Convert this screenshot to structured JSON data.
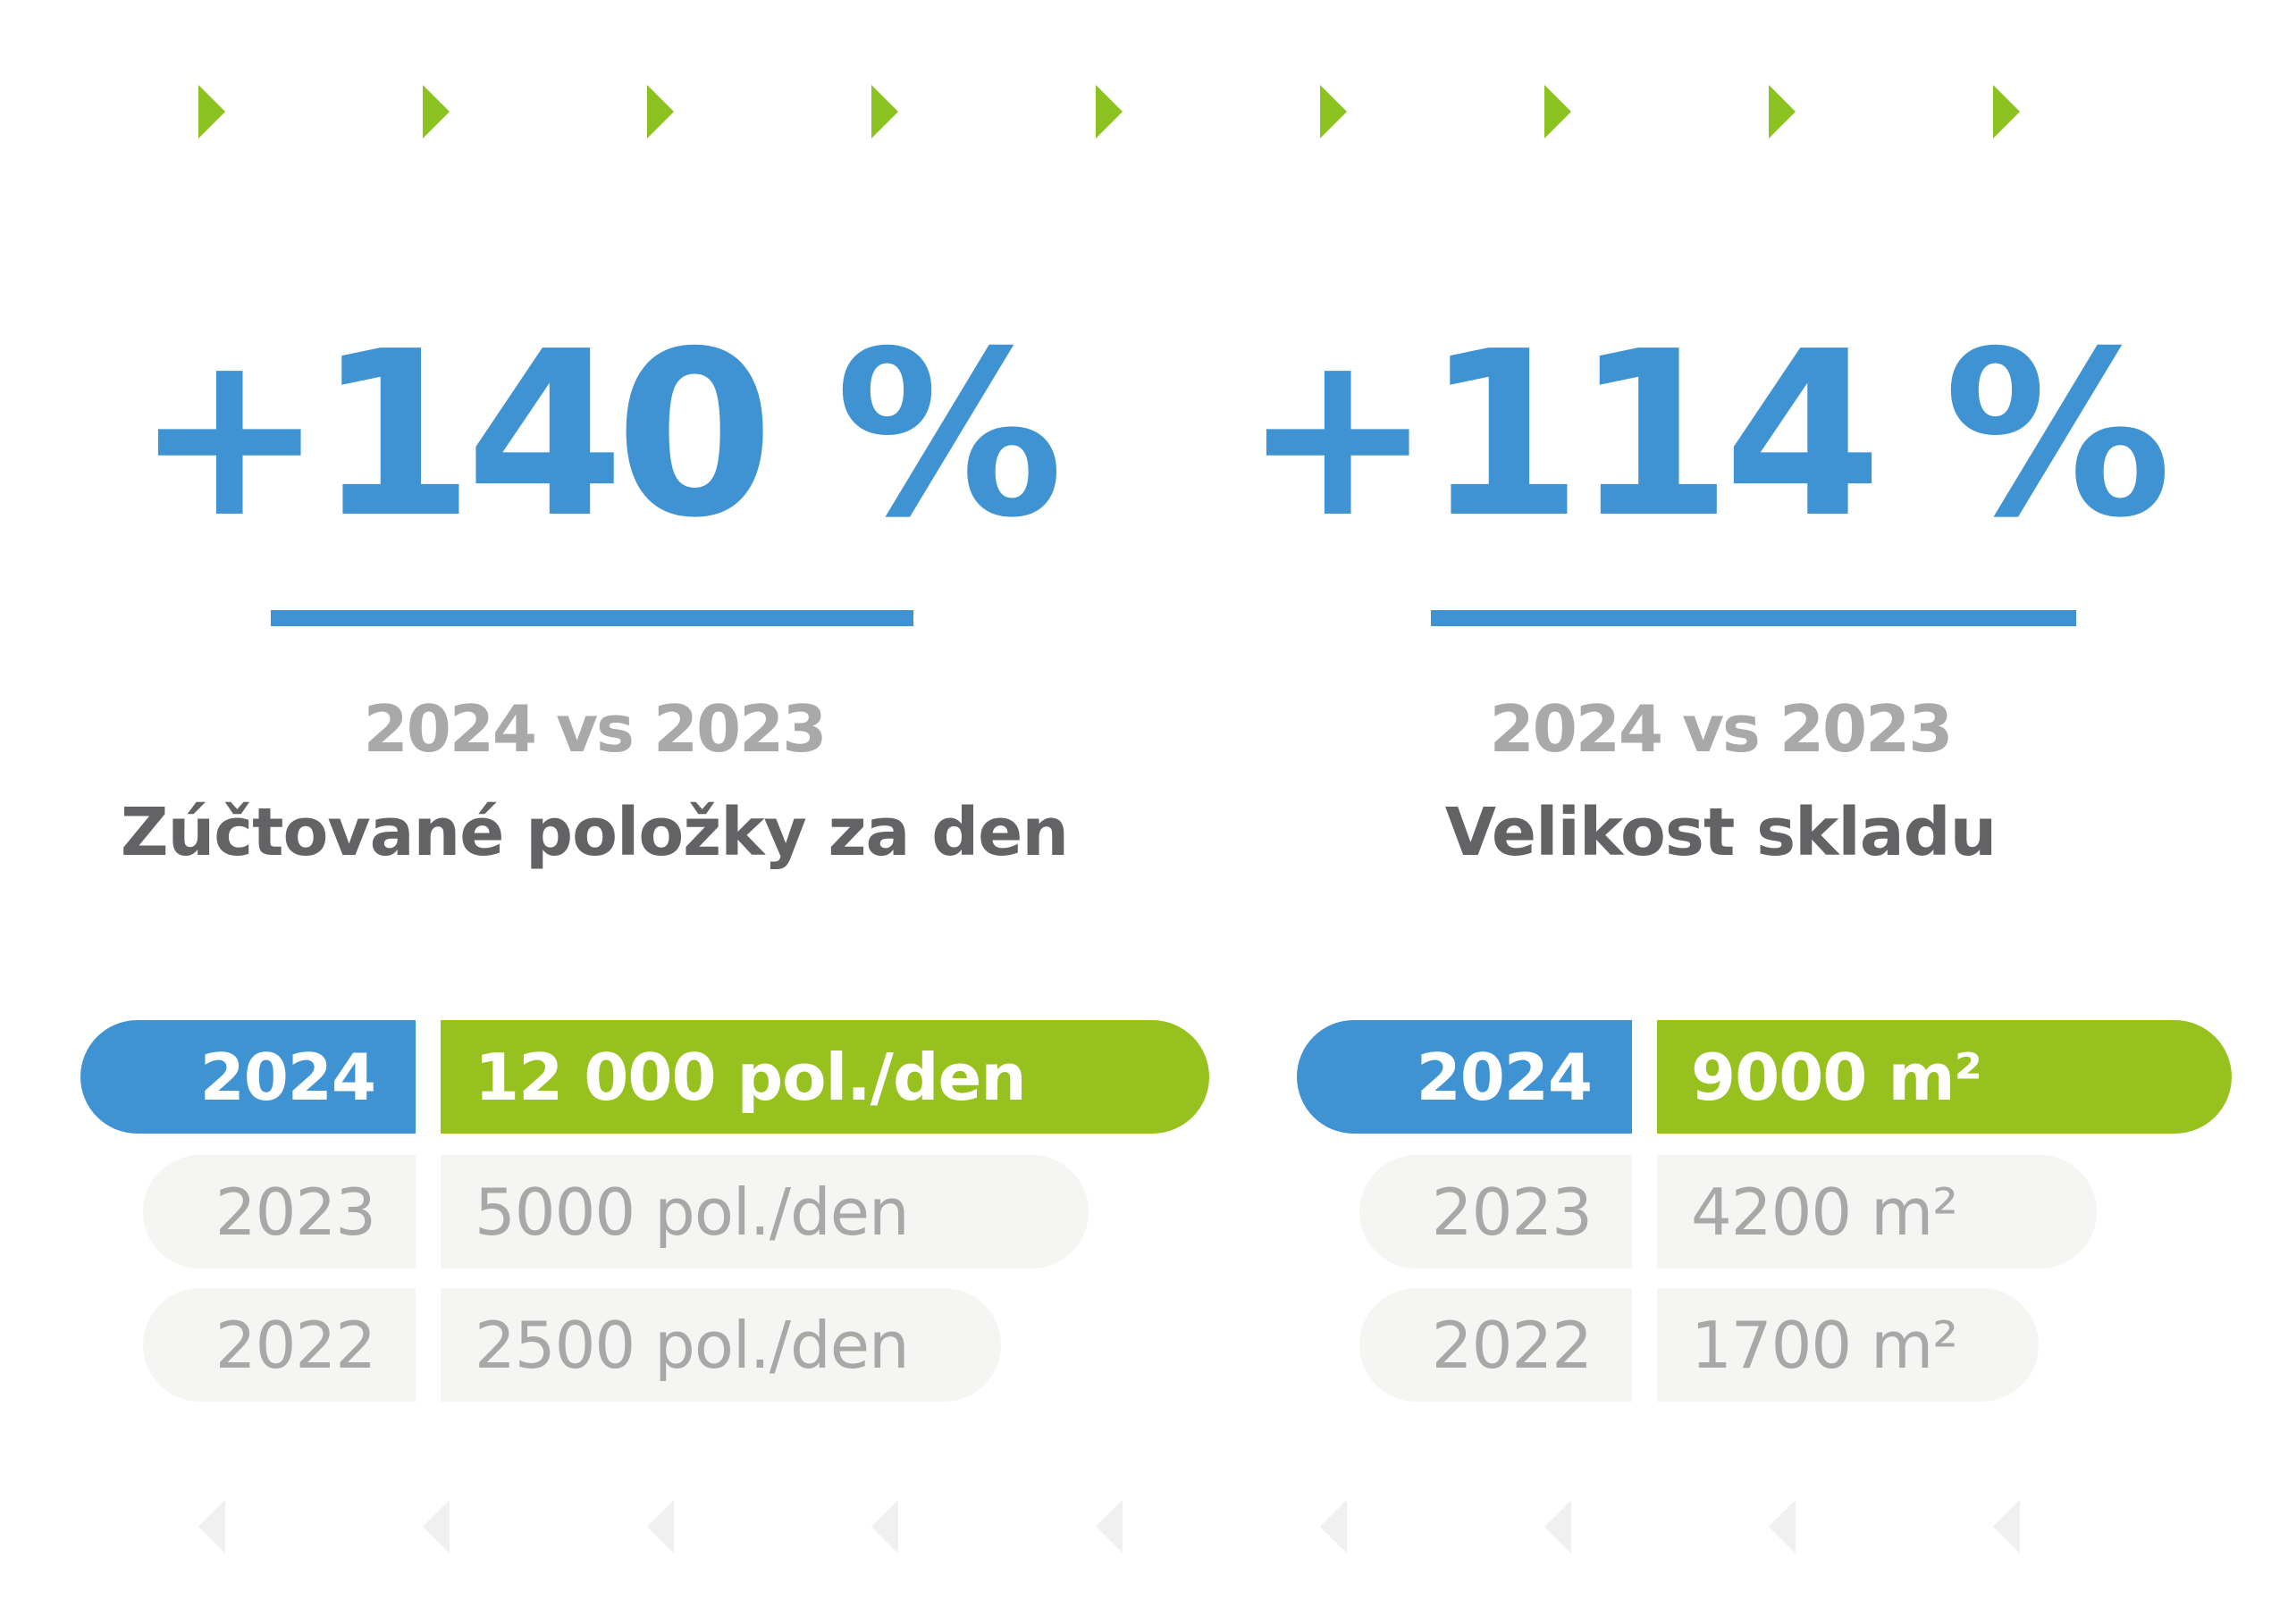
{
  "colors": {
    "accent_blue": "#3f93d2",
    "accent_green": "#97c11f",
    "heading_gray": "#636366",
    "muted_gray": "#a9a9a9",
    "pill_gray": "#f5f5f4",
    "arrow_light": "#f0f0f0"
  },
  "decor": {
    "top_arrow_icon": "chevron-right-icon",
    "bottom_arrow_icon": "chevron-left-icon"
  },
  "panels": [
    {
      "percent": "+140 %",
      "comparison": "2024 vs 2023",
      "metric": "Zúčtované položky za den",
      "rows": [
        {
          "year": "2024",
          "value": "12 000 pol./den"
        },
        {
          "year": "2023",
          "value": "5000 pol./den"
        },
        {
          "year": "2022",
          "value": "2500 pol./den"
        }
      ]
    },
    {
      "percent": "+114 %",
      "comparison": "2024 vs 2023",
      "metric": "Velikost skladu",
      "rows": [
        {
          "year": "2024",
          "value": "9000 m²"
        },
        {
          "year": "2023",
          "value": "4200 m²"
        },
        {
          "year": "2022",
          "value": "1700 m²"
        }
      ]
    }
  ]
}
